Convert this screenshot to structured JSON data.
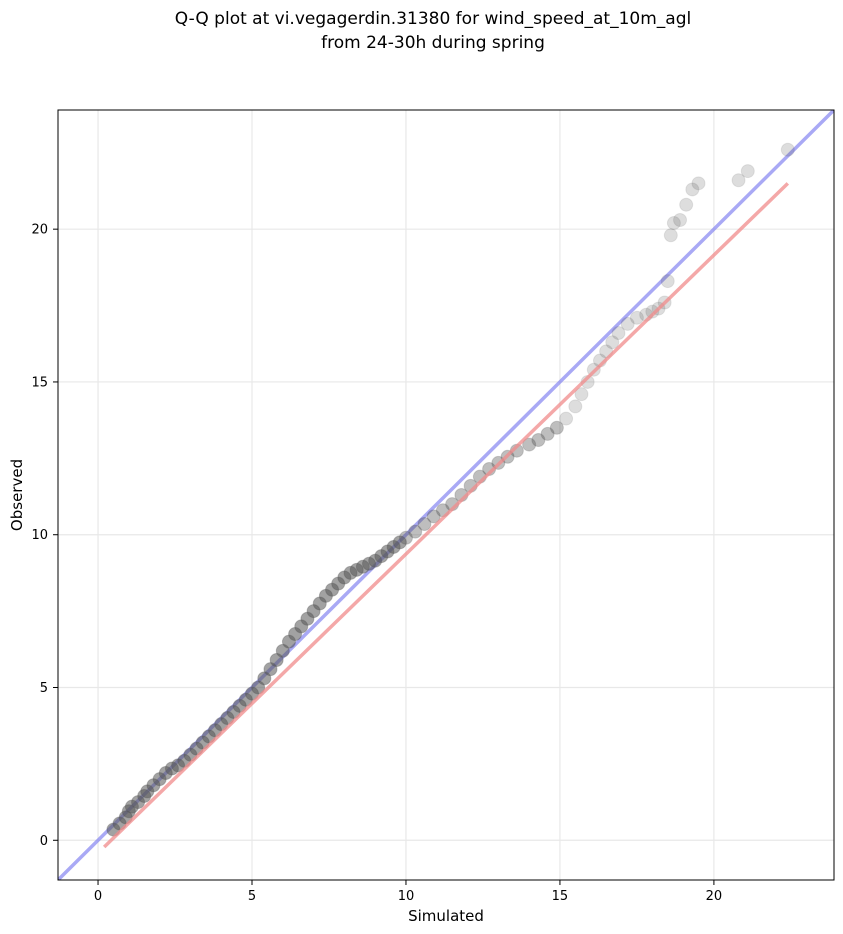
{
  "chart_data": {
    "type": "scatter",
    "title_line1": "Q-Q plot at vi.vegagerdin.31380 for wind_speed_at_10m_agl",
    "title_line2": "from 24-30h during spring",
    "xlabel": "Simulated",
    "ylabel": "Observed",
    "xlim": [
      -1.3,
      23.9
    ],
    "ylim": [
      -1.3,
      23.9
    ],
    "xticks": [
      0,
      5,
      10,
      15,
      20
    ],
    "yticks": [
      0,
      5,
      10,
      15,
      20
    ],
    "grid": true,
    "series": [
      {
        "kind": "line",
        "role": "identity-line",
        "color": "#7b7bf0",
        "x": [
          -1.3,
          23.9
        ],
        "y": [
          -1.3,
          23.9
        ]
      },
      {
        "kind": "line",
        "role": "fit-line",
        "color": "#f08b8b",
        "x": [
          0.2,
          22.4
        ],
        "y": [
          -0.22,
          21.5
        ]
      },
      {
        "kind": "scatter",
        "role": "quantiles",
        "color": "#555555",
        "x": [
          0.5,
          0.7,
          0.9,
          1.0,
          1.1,
          1.3,
          1.5,
          1.6,
          1.8,
          2.0,
          2.2,
          2.4,
          2.6,
          2.8,
          3.0,
          3.2,
          3.4,
          3.6,
          3.8,
          4.0,
          4.2,
          4.4,
          4.6,
          4.8,
          5.0,
          5.2,
          5.4,
          5.6,
          5.8,
          6.0,
          6.2,
          6.4,
          6.6,
          6.8,
          7.0,
          7.2,
          7.4,
          7.6,
          7.8,
          8.0,
          8.2,
          8.4,
          8.6,
          8.8,
          9.0,
          9.2,
          9.4,
          9.6,
          9.8,
          10.0,
          10.3,
          10.6,
          10.9,
          11.2,
          11.5,
          11.8,
          12.1,
          12.4,
          12.7,
          13.0,
          13.3,
          13.6,
          14.0,
          14.3,
          14.6,
          14.9,
          15.2,
          15.5,
          15.7,
          15.9,
          16.1,
          16.3,
          16.5,
          16.7,
          16.9,
          17.2,
          17.5,
          17.8,
          18.0,
          18.2,
          18.4,
          18.5,
          18.6,
          18.7,
          18.9,
          19.1,
          19.3,
          19.5,
          20.8,
          21.1,
          22.4
        ],
        "y": [
          0.35,
          0.55,
          0.75,
          0.95,
          1.1,
          1.25,
          1.45,
          1.6,
          1.8,
          2.0,
          2.2,
          2.35,
          2.45,
          2.6,
          2.8,
          3.0,
          3.2,
          3.4,
          3.6,
          3.8,
          4.0,
          4.2,
          4.4,
          4.6,
          4.8,
          5.0,
          5.3,
          5.6,
          5.9,
          6.2,
          6.5,
          6.75,
          7.0,
          7.25,
          7.5,
          7.75,
          8.0,
          8.2,
          8.4,
          8.6,
          8.75,
          8.85,
          8.95,
          9.05,
          9.15,
          9.3,
          9.45,
          9.6,
          9.75,
          9.9,
          10.1,
          10.35,
          10.6,
          10.8,
          11.0,
          11.3,
          11.6,
          11.9,
          12.15,
          12.35,
          12.55,
          12.75,
          12.95,
          13.1,
          13.3,
          13.5,
          13.8,
          14.2,
          14.6,
          15.0,
          15.4,
          15.7,
          16.0,
          16.3,
          16.6,
          16.9,
          17.1,
          17.2,
          17.3,
          17.4,
          17.6,
          18.3,
          19.8,
          20.2,
          20.3,
          20.8,
          21.3,
          21.5,
          21.6,
          21.9,
          22.6
        ]
      }
    ]
  }
}
